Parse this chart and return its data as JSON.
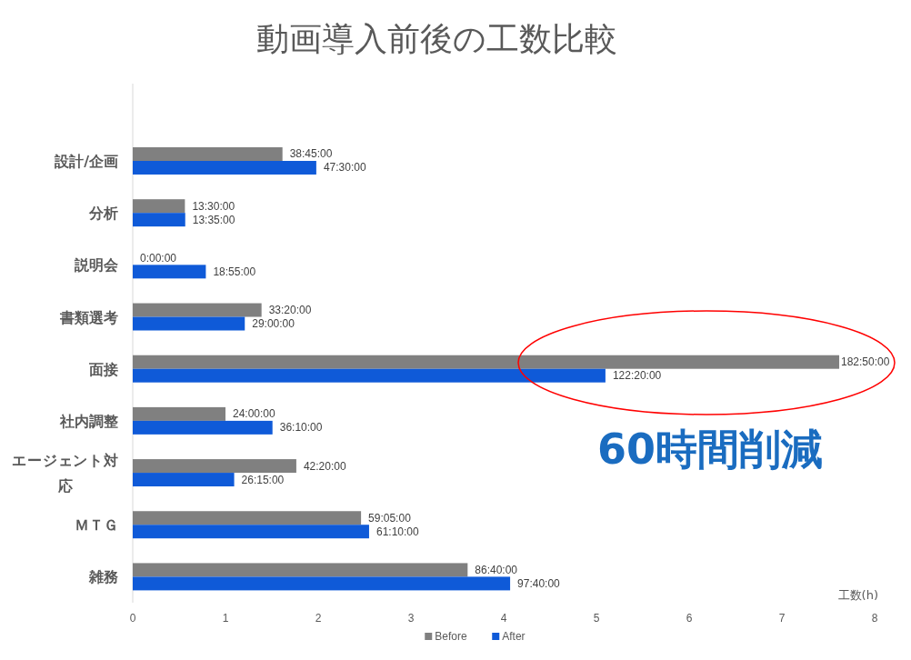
{
  "chart_data": {
    "type": "bar",
    "orientation": "horizontal",
    "title": "動画導入前後の工数比較",
    "xlabel": "工数(h)",
    "categories": [
      "設計/企画",
      "分析",
      "説明会",
      "書類選考",
      "面接",
      "社内調整",
      "エージェント対応",
      "ＭＴＧ",
      "雑務"
    ],
    "series": [
      {
        "name": "Before",
        "color": "#808080",
        "values": [
          1.6146,
          0.5625,
          0,
          1.3889,
          7.6181,
          1,
          1.7639,
          2.4618,
          3.6111
        ]
      },
      {
        "name": "After",
        "color": "#0f5ad8",
        "values": [
          1.9792,
          0.566,
          0.7882,
          1.2083,
          5.0972,
          1.5069,
          1.0938,
          2.5486,
          4.0694
        ]
      }
    ],
    "xlim": [
      0,
      8
    ],
    "xticks": [
      0,
      1,
      2,
      3,
      4,
      5,
      6,
      7,
      8
    ],
    "legend": "bottom",
    "annotations": [
      "60時間削減",
      {
        "text": "38:45:00",
        "x": 1.6146,
        "y": "設計/企画"
      },
      {
        "text": "47:30:00",
        "x": 1.9792,
        "y": "設計/企画"
      },
      {
        "text": "13:30:00",
        "x": 0.5625,
        "y": "分析"
      },
      {
        "text": "13:35:00",
        "x": 0.566,
        "y": "分析"
      },
      {
        "text": "0:00:00",
        "x": 0,
        "y": "説明会"
      },
      {
        "text": "18:55:00",
        "x": 0.7882,
        "y": "説明会"
      },
      {
        "text": "33:20:00",
        "x": 1.3889,
        "y": "書類選考"
      },
      {
        "text": "29:00:00",
        "x": 1.2083,
        "y": "書類選考"
      },
      {
        "text": "182:50:00",
        "x": 7.6181,
        "y": "面接"
      },
      {
        "text": "122:20:00",
        "x": 5.0972,
        "y": "面接"
      },
      {
        "text": "24:00:00",
        "x": 1,
        "y": "社内調整"
      },
      {
        "text": "36:10:00",
        "x": 1.5069,
        "y": "社内調整"
      },
      {
        "text": "42:20:00",
        "x": 1.7639,
        "y": "エージェント対応"
      },
      {
        "text": "26:15:00",
        "x": 1.0938,
        "y": "エージェント対応"
      },
      {
        "text": "59:05:00",
        "x": 2.4618,
        "y": "ＭＴＧ"
      },
      {
        "text": "61:10:00",
        "x": 2.5486,
        "y": "ＭＴＧ"
      },
      {
        "text": "86:40:00",
        "x": 3.6111,
        "y": "雑務"
      },
      {
        "text": "97:40:00",
        "x": 4.0694,
        "y": "雑務"
      }
    ]
  }
}
